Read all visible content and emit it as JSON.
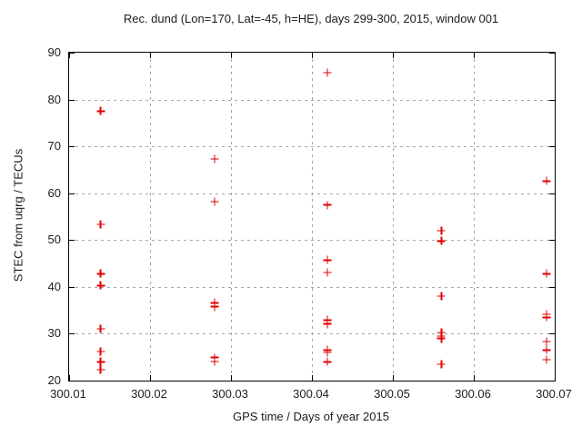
{
  "page": {
    "background_color": "#ffffff",
    "text_color": "#1c1c1c"
  },
  "chart_data": {
    "type": "scatter",
    "title": "Rec. dund (Lon=170, Lat=-45, h=HE), days 299-300, 2015, window 001",
    "xlabel": "GPS time / Days of year 2015",
    "ylabel": "STEC from uqrg / TECUs",
    "xlim": [
      300.01,
      300.07
    ],
    "ylim": [
      20,
      90
    ],
    "xticks": [
      300.01,
      300.02,
      300.03,
      300.04,
      300.05,
      300.06,
      300.07
    ],
    "xtick_labels": [
      "300.01",
      "300.02",
      "300.03",
      "300.04",
      "300.05",
      "300.06",
      "300.07"
    ],
    "yticks": [
      20,
      30,
      40,
      50,
      60,
      70,
      80,
      90
    ],
    "ytick_labels": [
      "20",
      "30",
      "40",
      "50",
      "60",
      "70",
      "80",
      "90"
    ],
    "grid": true,
    "grid_color": "#a6a6a6",
    "border_color": "#000000",
    "legend_position": "none",
    "marker": "plus",
    "marker_color": "#e00000",
    "series": [
      {
        "name": "STEC from uqrg",
        "points": [
          [
            300.0139,
            77.5
          ],
          [
            300.0139,
            53.4
          ],
          [
            300.0139,
            42.8
          ],
          [
            300.0139,
            40.3
          ],
          [
            300.0139,
            31.1
          ],
          [
            300.0139,
            26.2
          ],
          [
            300.0139,
            24.0
          ],
          [
            300.0139,
            22.3
          ],
          [
            300.028,
            67.3
          ],
          [
            300.028,
            58.2
          ],
          [
            300.028,
            36.6
          ],
          [
            300.028,
            35.8
          ],
          [
            300.028,
            24.9
          ],
          [
            300.028,
            24.1
          ],
          [
            300.0419,
            85.7
          ],
          [
            300.0419,
            57.5
          ],
          [
            300.0419,
            45.7
          ],
          [
            300.0419,
            43.1
          ],
          [
            300.0419,
            32.9
          ],
          [
            300.0419,
            32.1
          ],
          [
            300.0419,
            26.5
          ],
          [
            300.0419,
            26.0
          ],
          [
            300.0419,
            24.0
          ],
          [
            300.056,
            52.0
          ],
          [
            300.056,
            49.8
          ],
          [
            300.056,
            38.0
          ],
          [
            300.056,
            30.3
          ],
          [
            300.056,
            29.5
          ],
          [
            300.056,
            29.0
          ],
          [
            300.056,
            23.5
          ],
          [
            300.069,
            62.6
          ],
          [
            300.069,
            42.8
          ],
          [
            300.069,
            34.2
          ],
          [
            300.069,
            33.5
          ],
          [
            300.069,
            28.3
          ],
          [
            300.069,
            26.5
          ],
          [
            300.069,
            24.5
          ]
        ]
      }
    ]
  }
}
